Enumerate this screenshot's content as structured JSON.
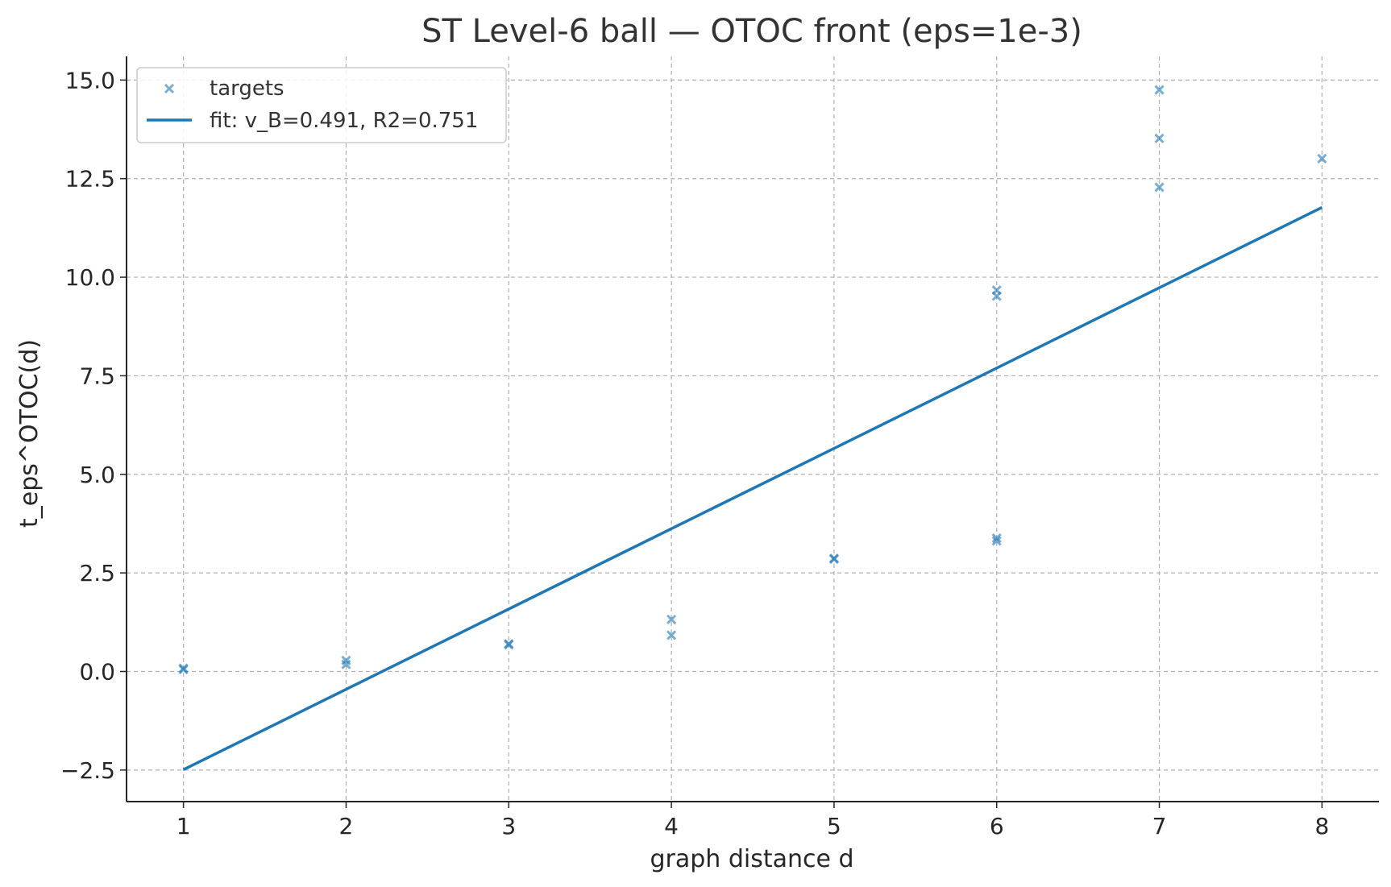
{
  "chart_data": {
    "type": "scatter",
    "title": "ST Level-6 ball — OTOC front (eps=1e-3)",
    "xlabel": "graph distance d",
    "ylabel": "t_eps^OTOC(d)",
    "xlim": [
      0.65,
      8.35
    ],
    "ylim": [
      -3.3,
      15.6
    ],
    "x_ticks": [
      1,
      2,
      3,
      4,
      5,
      6,
      7,
      8
    ],
    "y_ticks": [
      -2.5,
      0.0,
      2.5,
      5.0,
      7.5,
      10.0,
      12.5,
      15.0
    ],
    "x_tick_labels": [
      "1",
      "2",
      "3",
      "4",
      "5",
      "6",
      "7",
      "8"
    ],
    "y_tick_labels": [
      "−2.5",
      "0.0",
      "2.5",
      "5.0",
      "7.5",
      "10.0",
      "12.5",
      "15.0"
    ],
    "grid": true,
    "legend_position": "top-left",
    "colors": {
      "series": "#1f77b4",
      "axis": "#262626",
      "grid": "#b0b0b0"
    },
    "series": [
      {
        "name": "targets",
        "kind": "scatter",
        "marker": "x",
        "points": [
          {
            "x": 1,
            "y": 0.05
          },
          {
            "x": 1,
            "y": 0.08
          },
          {
            "x": 2,
            "y": 0.18
          },
          {
            "x": 2,
            "y": 0.28
          },
          {
            "x": 3,
            "y": 0.7
          },
          {
            "x": 3,
            "y": 0.68
          },
          {
            "x": 4,
            "y": 0.92
          },
          {
            "x": 4,
            "y": 1.32
          },
          {
            "x": 5,
            "y": 2.87
          },
          {
            "x": 5,
            "y": 2.85
          },
          {
            "x": 6,
            "y": 3.31
          },
          {
            "x": 6,
            "y": 3.38
          },
          {
            "x": 6,
            "y": 9.52
          },
          {
            "x": 6,
            "y": 9.67
          },
          {
            "x": 7,
            "y": 12.28
          },
          {
            "x": 7,
            "y": 13.52
          },
          {
            "x": 7,
            "y": 14.75
          },
          {
            "x": 8,
            "y": 13.01
          }
        ]
      },
      {
        "name": "fit: v_B=0.491, R2=0.751",
        "kind": "line",
        "points": [
          {
            "x": 1,
            "y": -2.49
          },
          {
            "x": 8,
            "y": 11.77
          }
        ]
      }
    ]
  }
}
